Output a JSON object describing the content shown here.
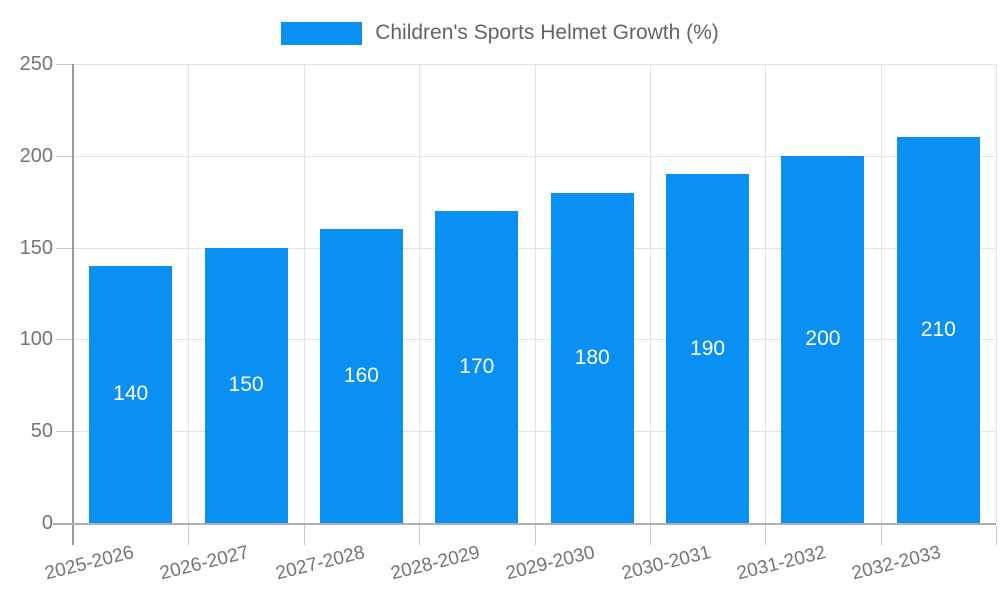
{
  "legend": {
    "label": "Children's Sports Helmet Growth (%)"
  },
  "chart_data": {
    "type": "bar",
    "title": "",
    "xlabel": "",
    "ylabel": "",
    "categories": [
      "2025-2026",
      "2026-2027",
      "2027-2028",
      "2028-2029",
      "2029-2030",
      "2030-2031",
      "2031-2032",
      "2032-2033"
    ],
    "series": [
      {
        "name": "Children's Sports Helmet Growth (%)",
        "values": [
          140,
          150,
          160,
          170,
          180,
          190,
          200,
          210
        ]
      }
    ],
    "ylim": [
      0,
      250
    ],
    "ytick_step": 50,
    "ytick_labels": [
      "0",
      "50",
      "100",
      "150",
      "200",
      "250"
    ],
    "grid": true,
    "legend_position": "top",
    "value_labels": "inside-center",
    "colors": {
      "bar": "#0a8ff2",
      "value_label": "#ffffff",
      "axis_label": "#757575",
      "legend_text": "#646464",
      "gridline": "#e3e3e3",
      "tick": "#c9c9c9",
      "y_axis_line": "#9a9a9a",
      "x_axis_line": "#b0b0b0",
      "background": "#ffffff"
    }
  }
}
